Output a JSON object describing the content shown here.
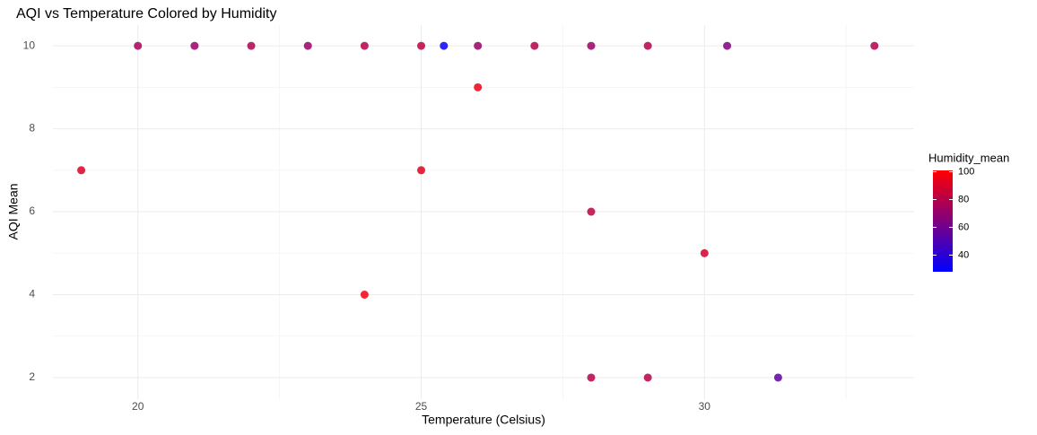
{
  "chart_data": {
    "type": "scatter",
    "title": "AQI vs Temperature Colored by Humidity",
    "x_label": "Temperature (Celsius)",
    "y_label": "AQI Mean",
    "x": [
      19,
      20,
      21,
      22,
      23,
      24,
      25,
      25.4,
      26,
      27,
      28,
      29,
      30.4,
      33,
      26,
      25,
      28,
      30,
      24,
      28,
      29,
      31.3
    ],
    "values": [
      7,
      10,
      10,
      10,
      10,
      10,
      10,
      10,
      10,
      10,
      10,
      10,
      10,
      10,
      9,
      7,
      6,
      5,
      4,
      2,
      2,
      2
    ],
    "color_values": [
      90,
      75,
      72,
      78,
      72,
      80,
      82,
      30,
      72,
      80,
      72,
      80,
      65,
      80,
      95,
      92,
      82,
      88,
      97,
      80,
      80,
      55
    ],
    "xlim": [
      18.5,
      33.7
    ],
    "xticks": [
      20,
      25,
      30
    ],
    "ylim": [
      1.48,
      10.5
    ],
    "yticks": [
      2,
      4,
      6,
      8,
      10
    ],
    "grid": true,
    "color_scale": {
      "title": "Humidity_mean",
      "low": "#0000ff",
      "high": "#ff0000",
      "lim": [
        28,
        101
      ],
      "ticks": [
        40,
        60,
        80,
        100
      ]
    }
  }
}
